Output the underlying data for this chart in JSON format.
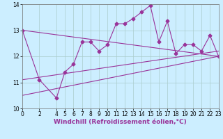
{
  "xlabel": "Windchill (Refroidissement éolien,°C)",
  "ylabel": "",
  "xlim": [
    0,
    23
  ],
  "ylim": [
    10,
    14
  ],
  "yticks": [
    10,
    11,
    12,
    13,
    14
  ],
  "xticks": [
    0,
    2,
    4,
    5,
    6,
    7,
    8,
    9,
    10,
    11,
    12,
    13,
    14,
    15,
    16,
    17,
    18,
    19,
    20,
    21,
    22,
    23
  ],
  "main_x": [
    0,
    2,
    4,
    5,
    6,
    7,
    8,
    9,
    10,
    11,
    12,
    13,
    14,
    15,
    16,
    17,
    18,
    19,
    20,
    21,
    22,
    23
  ],
  "main_y": [
    13.0,
    11.1,
    10.4,
    11.4,
    11.7,
    12.55,
    12.55,
    12.2,
    12.45,
    13.25,
    13.25,
    13.45,
    13.7,
    13.95,
    12.55,
    13.35,
    12.1,
    12.45,
    12.45,
    12.2,
    12.8,
    12.0
  ],
  "line1_x": [
    0,
    23
  ],
  "line1_y": [
    13.0,
    12.0
  ],
  "line2_x": [
    0,
    23
  ],
  "line2_y": [
    11.1,
    12.2
  ],
  "line3_x": [
    0,
    23
  ],
  "line3_y": [
    10.5,
    12.0
  ],
  "bg_color": "#cceeff",
  "line_color": "#993399",
  "grid_color": "#aacccc",
  "marker": "D",
  "markersize": 2.5,
  "linewidth": 0.8,
  "tick_fontsize": 5.5,
  "xlabel_fontsize": 6.5
}
